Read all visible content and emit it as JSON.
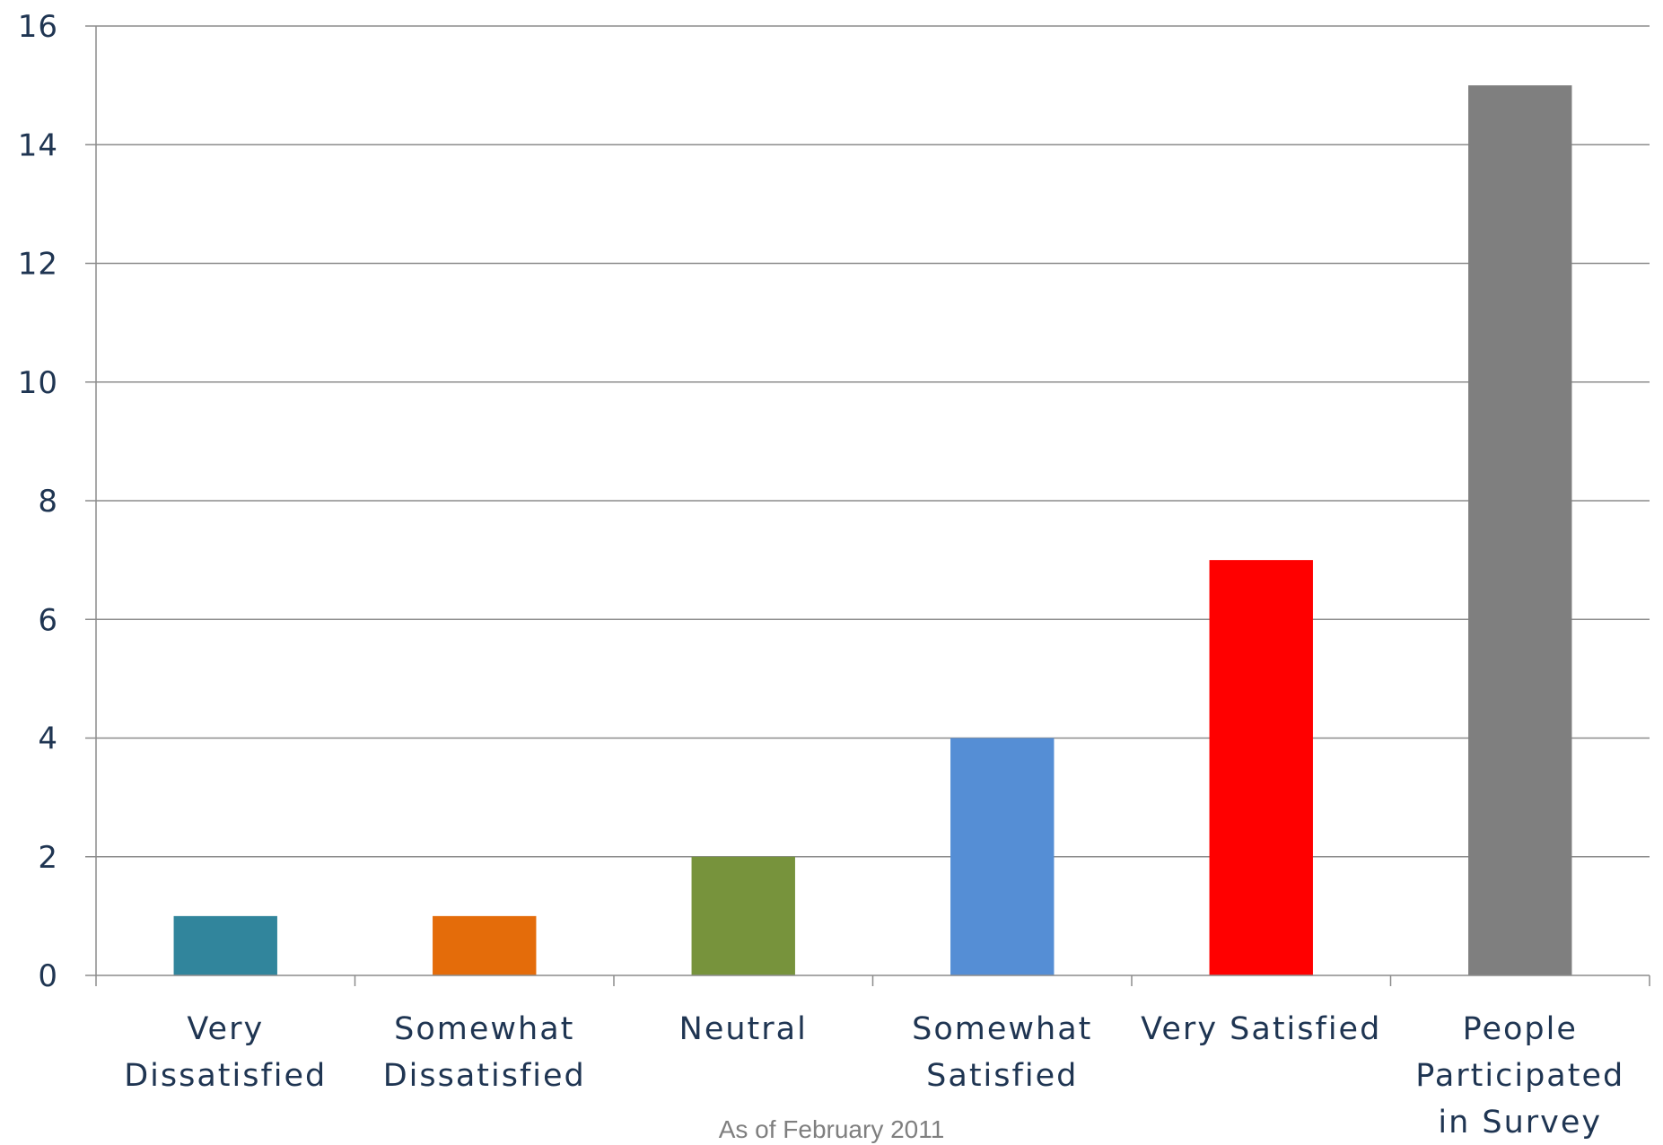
{
  "chart_data": {
    "type": "bar",
    "categories": [
      [
        "Very",
        "Dissatisfied"
      ],
      [
        "Somewhat",
        "Dissatisfied"
      ],
      [
        "Neutral"
      ],
      [
        "Somewhat",
        "Satisfied"
      ],
      [
        "Very Satisfied"
      ],
      [
        "People",
        "Participated",
        "in Survey"
      ]
    ],
    "values": [
      1,
      1,
      2,
      4,
      7,
      15
    ],
    "colors": [
      "#31859C",
      "#E46C0A",
      "#77933C",
      "#558ED5",
      "#FF0000",
      "#7F7F7F"
    ],
    "ylim": [
      0,
      16
    ],
    "yticks": [
      "0",
      "2",
      "4",
      "6",
      "8",
      "10",
      "12",
      "14",
      "16"
    ],
    "grid": true,
    "legend": "none",
    "title": "",
    "xlabel": "",
    "ylabel": ""
  },
  "footnote": "As of February 2011"
}
